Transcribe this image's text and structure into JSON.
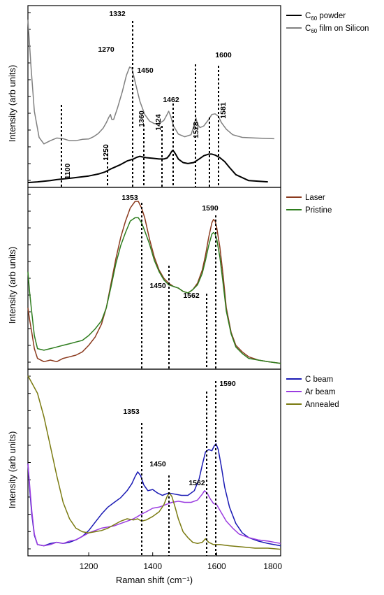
{
  "chart_data": [
    {
      "type": "line",
      "ylabel": "Intensity (arb units)",
      "xlim": [
        1010,
        1800
      ],
      "legend": {
        "position": "right-top"
      },
      "series": [
        {
          "name": "C60 powder",
          "color": "#000000",
          "x": [
            1010,
            1040,
            1080,
            1100,
            1150,
            1200,
            1230,
            1250,
            1270,
            1300,
            1320,
            1340,
            1350,
            1360,
            1370,
            1380,
            1400,
            1420,
            1435,
            1445,
            1452,
            1458,
            1462,
            1466,
            1472,
            1480,
            1495,
            1510,
            1528,
            1545,
            1560,
            1575,
            1585,
            1595,
            1610,
            1625,
            1640,
            1660,
            1700,
            1760
          ],
          "values": [
            0.02,
            0.04,
            0.08,
            0.11,
            0.16,
            0.22,
            0.28,
            0.34,
            0.44,
            0.57,
            0.68,
            0.74,
            0.79,
            0.82,
            0.8,
            0.78,
            0.76,
            0.74,
            0.74,
            0.77,
            0.85,
            0.95,
            1.0,
            0.97,
            0.88,
            0.74,
            0.63,
            0.6,
            0.63,
            0.74,
            0.84,
            0.89,
            0.89,
            0.86,
            0.78,
            0.66,
            0.48,
            0.26,
            0.08,
            0.04
          ]
        },
        {
          "name": "C60 film on Silicon",
          "color": "#808080",
          "x": [
            1010,
            1020,
            1030,
            1045,
            1060,
            1080,
            1100,
            1120,
            1140,
            1160,
            1180,
            1200,
            1215,
            1230,
            1245,
            1255,
            1262,
            1268,
            1272,
            1278,
            1290,
            1305,
            1318,
            1328,
            1335,
            1345,
            1360,
            1375,
            1390,
            1405,
            1420,
            1435,
            1445,
            1450,
            1456,
            1465,
            1480,
            1500,
            1520,
            1530,
            1535,
            1540,
            1548,
            1560,
            1575,
            1585,
            1595,
            1605,
            1615,
            1630,
            1650,
            1680,
            1720,
            1780
          ],
          "values": [
            5.0,
            3.5,
            2.2,
            1.4,
            1.2,
            1.3,
            1.38,
            1.36,
            1.3,
            1.3,
            1.34,
            1.35,
            1.42,
            1.52,
            1.68,
            1.85,
            2.0,
            2.1,
            1.95,
            1.95,
            2.3,
            2.8,
            3.3,
            3.55,
            3.52,
            3.1,
            2.5,
            2.1,
            1.9,
            1.82,
            1.82,
            1.92,
            2.1,
            2.2,
            2.05,
            1.75,
            1.5,
            1.42,
            1.48,
            1.8,
            2.0,
            1.8,
            1.7,
            1.75,
            1.95,
            2.1,
            2.12,
            2.05,
            1.85,
            1.65,
            1.48,
            1.4,
            1.38,
            1.36
          ]
        }
      ],
      "annotations": [
        "1332",
        "1270",
        "1450",
        "1600",
        "1462",
        "1360",
        "1424",
        "1581",
        "1528",
        "1250",
        "1100"
      ],
      "markers": [
        1100,
        1250,
        1332,
        1360,
        1424,
        1462,
        1528,
        1581,
        1600
      ]
    },
    {
      "type": "line",
      "ylabel": "Intensity (arb units)",
      "xlim": [
        1010,
        1800
      ],
      "legend": {
        "position": "right-top"
      },
      "series": [
        {
          "name": "Laser",
          "color": "#8b3a1e",
          "x": [
            1010,
            1015,
            1022,
            1030,
            1040,
            1060,
            1080,
            1100,
            1120,
            1140,
            1160,
            1180,
            1200,
            1220,
            1240,
            1255,
            1270,
            1285,
            1300,
            1315,
            1330,
            1345,
            1355,
            1365,
            1375,
            1390,
            1405,
            1420,
            1435,
            1450,
            1465,
            1480,
            1495,
            1510,
            1525,
            1540,
            1555,
            1565,
            1575,
            1585,
            1590,
            1595,
            1600,
            1610,
            1620,
            1630,
            1645,
            1660,
            1680,
            1700,
            1730,
            1760,
            1800
          ],
          "values": [
            0.35,
            0.28,
            0.2,
            0.1,
            0.04,
            0.02,
            0.03,
            0.02,
            0.04,
            0.05,
            0.06,
            0.08,
            0.12,
            0.17,
            0.25,
            0.35,
            0.5,
            0.65,
            0.78,
            0.88,
            0.96,
            1.0,
            1.0,
            0.96,
            0.9,
            0.77,
            0.66,
            0.58,
            0.53,
            0.5,
            0.48,
            0.47,
            0.45,
            0.44,
            0.46,
            0.5,
            0.58,
            0.67,
            0.78,
            0.87,
            0.89,
            0.88,
            0.84,
            0.72,
            0.55,
            0.35,
            0.2,
            0.12,
            0.08,
            0.05,
            0.03,
            0.02,
            0.01
          ]
        },
        {
          "name": "Pristine",
          "color": "#2e7d1e",
          "x": [
            1010,
            1015,
            1022,
            1030,
            1040,
            1060,
            1080,
            1100,
            1120,
            1140,
            1160,
            1180,
            1200,
            1220,
            1240,
            1255,
            1270,
            1285,
            1300,
            1315,
            1330,
            1345,
            1355,
            1365,
            1375,
            1390,
            1405,
            1420,
            1435,
            1450,
            1465,
            1480,
            1495,
            1510,
            1525,
            1540,
            1555,
            1565,
            1575,
            1585,
            1590,
            1595,
            1600,
            1610,
            1620,
            1630,
            1645,
            1660,
            1680,
            1700,
            1730,
            1760,
            1800
          ],
          "values": [
            0.57,
            0.45,
            0.32,
            0.18,
            0.1,
            0.09,
            0.1,
            0.11,
            0.12,
            0.13,
            0.14,
            0.15,
            0.18,
            0.22,
            0.27,
            0.35,
            0.48,
            0.62,
            0.73,
            0.81,
            0.88,
            0.9,
            0.9,
            0.87,
            0.82,
            0.74,
            0.64,
            0.57,
            0.52,
            0.49,
            0.48,
            0.47,
            0.45,
            0.44,
            0.46,
            0.49,
            0.56,
            0.64,
            0.73,
            0.8,
            0.81,
            0.8,
            0.77,
            0.66,
            0.5,
            0.33,
            0.19,
            0.11,
            0.07,
            0.04,
            0.03,
            0.02,
            0.01
          ]
        }
      ],
      "annotations": [
        "1353",
        "1590",
        "1450",
        "1562"
      ],
      "markers": [
        1353,
        1450,
        1562,
        1590
      ]
    },
    {
      "type": "line",
      "ylabel": "Intensity (arb units)",
      "xlabel": "Raman shift (cm⁻¹)",
      "xlim": [
        1010,
        1800
      ],
      "xticks": [
        1200,
        1400,
        1600,
        1800
      ],
      "legend": {
        "position": "right-top"
      },
      "series": [
        {
          "name": "C beam",
          "color": "#1a1ab4",
          "x": [
            1010,
            1015,
            1022,
            1030,
            1040,
            1060,
            1080,
            1100,
            1120,
            1140,
            1160,
            1180,
            1200,
            1220,
            1240,
            1260,
            1280,
            1300,
            1320,
            1335,
            1345,
            1353,
            1362,
            1372,
            1385,
            1400,
            1415,
            1430,
            1450,
            1470,
            1490,
            1510,
            1530,
            1545,
            1555,
            1565,
            1575,
            1585,
            1592,
            1598,
            1605,
            1615,
            1625,
            1640,
            1660,
            1680,
            1700,
            1730,
            1760,
            1800
          ],
          "values": [
            0.75,
            0.55,
            0.32,
            0.14,
            0.06,
            0.05,
            0.07,
            0.08,
            0.07,
            0.08,
            0.1,
            0.13,
            0.18,
            0.25,
            0.32,
            0.38,
            0.42,
            0.46,
            0.52,
            0.58,
            0.64,
            0.68,
            0.65,
            0.57,
            0.52,
            0.53,
            0.5,
            0.48,
            0.5,
            0.49,
            0.48,
            0.48,
            0.52,
            0.62,
            0.74,
            0.85,
            0.87,
            0.86,
            0.9,
            0.92,
            0.87,
            0.72,
            0.55,
            0.38,
            0.24,
            0.16,
            0.12,
            0.09,
            0.07,
            0.05
          ]
        },
        {
          "name": "Ar beam",
          "color": "#9b3de0",
          "x": [
            1010,
            1015,
            1022,
            1030,
            1040,
            1060,
            1080,
            1100,
            1120,
            1140,
            1160,
            1180,
            1200,
            1220,
            1240,
            1260,
            1280,
            1300,
            1320,
            1340,
            1353,
            1365,
            1380,
            1400,
            1420,
            1440,
            1460,
            1480,
            1500,
            1520,
            1540,
            1555,
            1562,
            1570,
            1580,
            1590,
            1600,
            1615,
            1630,
            1650,
            1670,
            1700,
            1730,
            1760,
            1800
          ],
          "values": [
            0.75,
            0.58,
            0.35,
            0.15,
            0.06,
            0.05,
            0.06,
            0.08,
            0.07,
            0.09,
            0.1,
            0.13,
            0.16,
            0.18,
            0.2,
            0.21,
            0.22,
            0.24,
            0.26,
            0.28,
            0.3,
            0.32,
            0.34,
            0.37,
            0.38,
            0.4,
            0.42,
            0.43,
            0.42,
            0.42,
            0.44,
            0.49,
            0.52,
            0.5,
            0.45,
            0.41,
            0.4,
            0.33,
            0.26,
            0.2,
            0.15,
            0.12,
            0.1,
            0.09,
            0.07
          ]
        },
        {
          "name": "Annealed",
          "color": "#7a7a10",
          "x": [
            1010,
            1040,
            1060,
            1080,
            1100,
            1120,
            1140,
            1160,
            1180,
            1200,
            1220,
            1240,
            1260,
            1280,
            1300,
            1320,
            1340,
            1353,
            1365,
            1380,
            1400,
            1420,
            1435,
            1445,
            1452,
            1460,
            1470,
            1480,
            1495,
            1510,
            1525,
            1540,
            1555,
            1565,
            1575,
            1590,
            1610,
            1640,
            1680,
            1720,
            1760,
            1800
          ],
          "values": [
            1.5,
            1.35,
            1.15,
            0.9,
            0.65,
            0.42,
            0.28,
            0.2,
            0.17,
            0.16,
            0.17,
            0.18,
            0.2,
            0.23,
            0.26,
            0.28,
            0.27,
            0.28,
            0.26,
            0.27,
            0.3,
            0.34,
            0.4,
            0.47,
            0.5,
            0.47,
            0.38,
            0.28,
            0.17,
            0.12,
            0.08,
            0.07,
            0.08,
            0.11,
            0.08,
            0.06,
            0.06,
            0.05,
            0.04,
            0.03,
            0.03,
            0.02
          ]
        }
      ],
      "annotations": [
        "1590",
        "1353",
        "1450",
        "1562"
      ],
      "markers": [
        1353,
        1450,
        1562,
        1590
      ]
    }
  ],
  "legend_text": {
    "p1": [
      {
        "main": "C",
        "sub": "60",
        "rest": " powder"
      },
      {
        "main": "C",
        "sub": "60",
        "rest": " film on Silicon"
      }
    ],
    "p2": [
      "Laser",
      "Pristine"
    ],
    "p3": [
      "C beam",
      "Ar beam",
      "Annealed"
    ]
  }
}
